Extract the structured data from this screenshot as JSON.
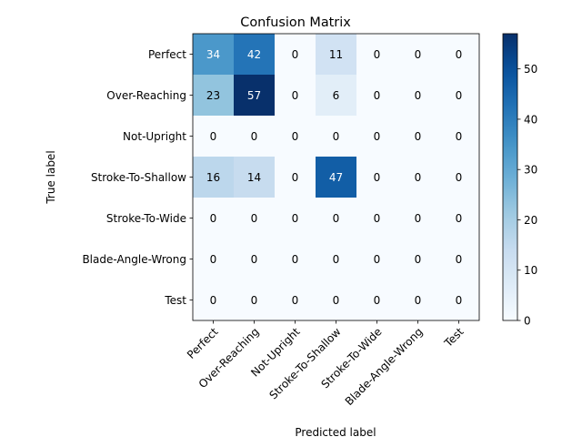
{
  "chart_data": {
    "type": "heatmap",
    "title": "Confusion Matrix",
    "xlabel": "Predicted label",
    "ylabel": "True label",
    "x_categories": [
      "Perfect",
      "Over-Reaching",
      "Not-Upright",
      "Stroke-To-Shallow",
      "Stroke-To-Wide",
      "Blade-Angle-Wrong",
      "Test"
    ],
    "y_categories": [
      "Perfect",
      "Over-Reaching",
      "Not-Upright",
      "Stroke-To-Shallow",
      "Stroke-To-Wide",
      "Blade-Angle-Wrong",
      "Test"
    ],
    "values": [
      [
        34,
        42,
        0,
        11,
        0,
        0,
        0
      ],
      [
        23,
        57,
        0,
        6,
        0,
        0,
        0
      ],
      [
        0,
        0,
        0,
        0,
        0,
        0,
        0
      ],
      [
        16,
        14,
        0,
        47,
        0,
        0,
        0
      ],
      [
        0,
        0,
        0,
        0,
        0,
        0,
        0
      ],
      [
        0,
        0,
        0,
        0,
        0,
        0,
        0
      ],
      [
        0,
        0,
        0,
        0,
        0,
        0,
        0
      ]
    ],
    "colormap": "Blues",
    "colorbar": {
      "range": [
        0,
        57
      ],
      "ticks": [
        0,
        10,
        20,
        30,
        40,
        50
      ]
    },
    "xtick_rotation": 45,
    "grid": false
  }
}
